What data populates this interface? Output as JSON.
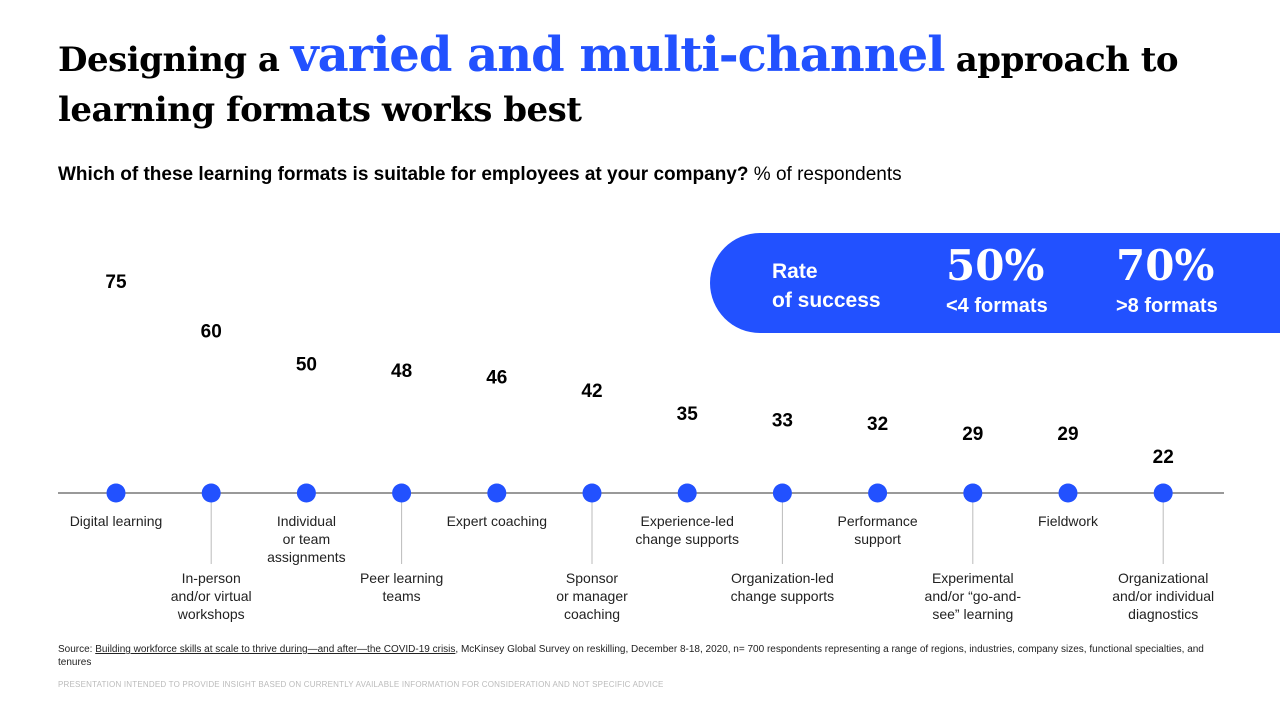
{
  "header": {
    "title_part1": "Designing a ",
    "title_highlight": "varied and multi-channel",
    "title_part2": " approach to learning formats works best",
    "subtitle_bold": "Which of these learning formats is suitable for employees at your company?",
    "subtitle_rest": " % of respondents"
  },
  "callout": {
    "rate_line1": "Rate",
    "rate_line2": "of success",
    "stat1_value": "50%",
    "stat1_label": "<4 formats",
    "stat2_value": "70%",
    "stat2_label": ">8 formats"
  },
  "chart_data": {
    "type": "scatter",
    "title": "Which of these learning formats is suitable for employees at your company?",
    "ylabel": "% of respondents",
    "categories": [
      "Digital learning",
      "In-person and/or virtual workshops",
      "Individual or team assignments",
      "Peer learning teams",
      "Expert coaching",
      "Sponsor or manager coaching",
      "Experience-led change supports",
      "Organization-led change supports",
      "Performance support",
      "Experimental and/or “go-and-see” learning",
      "Fieldwork",
      "Organizational and/or individual diagnostics"
    ],
    "label_lines": [
      [
        "Digital learning"
      ],
      [
        "In-person",
        "and/or virtual",
        "workshops"
      ],
      [
        "Individual",
        "or team",
        "assignments"
      ],
      [
        "Peer learning",
        "teams"
      ],
      [
        "Expert coaching"
      ],
      [
        "Sponsor",
        "or manager",
        "coaching"
      ],
      [
        "Experience-led",
        "change supports"
      ],
      [
        "Organization-led",
        "change supports"
      ],
      [
        "Performance",
        "support"
      ],
      [
        "Experimental",
        "and/or “go-and-",
        "see” learning"
      ],
      [
        "Fieldwork"
      ],
      [
        "Organizational",
        "and/or individual",
        "diagnostics"
      ]
    ],
    "values": [
      75,
      60,
      50,
      48,
      46,
      42,
      35,
      33,
      32,
      29,
      29,
      22
    ],
    "color": "#2251ff"
  },
  "footer": {
    "source_prefix": "Source: ",
    "source_link": "Building workforce skills at scale to thrive during—and after—the COVID-19 crisis",
    "source_rest": ", McKinsey Global Survey on reskilling, December 8-18, 2020, n= 700 respondents representing a range of regions, industries, company sizes, functional specialties, and tenures",
    "disclaimer": "PRESENTATION INTENDED TO PROVIDE INSIGHT BASED ON CURRENTLY AVAILABLE INFORMATION FOR CONSIDERATION AND NOT SPECIFIC ADVICE"
  }
}
